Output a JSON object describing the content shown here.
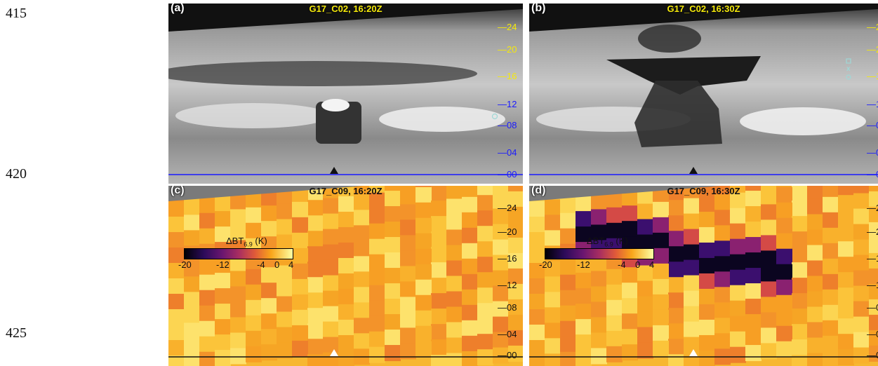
{
  "line_numbers": [
    "415",
    "420",
    "425"
  ],
  "panels": {
    "a": {
      "label": "(a)",
      "title": "G17_C02, 16:20Z"
    },
    "b": {
      "label": "(b)",
      "title": "G17_C02, 16:30Z"
    },
    "c": {
      "label": "(c)",
      "title": "G17_C09, 16:20Z"
    },
    "d": {
      "label": "(d)",
      "title": "G17_C09, 16:30Z"
    }
  },
  "axis_ticks": [
    "24",
    "20",
    "16",
    "12",
    "08",
    "04",
    "00"
  ],
  "colorbar": {
    "title": "ΔBT",
    "subscript": "6.9",
    "unit": " (K)",
    "ticks": [
      "-20",
      "-12",
      "-4",
      "0",
      "4"
    ]
  },
  "colors": {
    "tick_upper": "#f5e90a",
    "tick_lower": "#1a1aff",
    "marker_teal": "#9fd8d6"
  }
}
